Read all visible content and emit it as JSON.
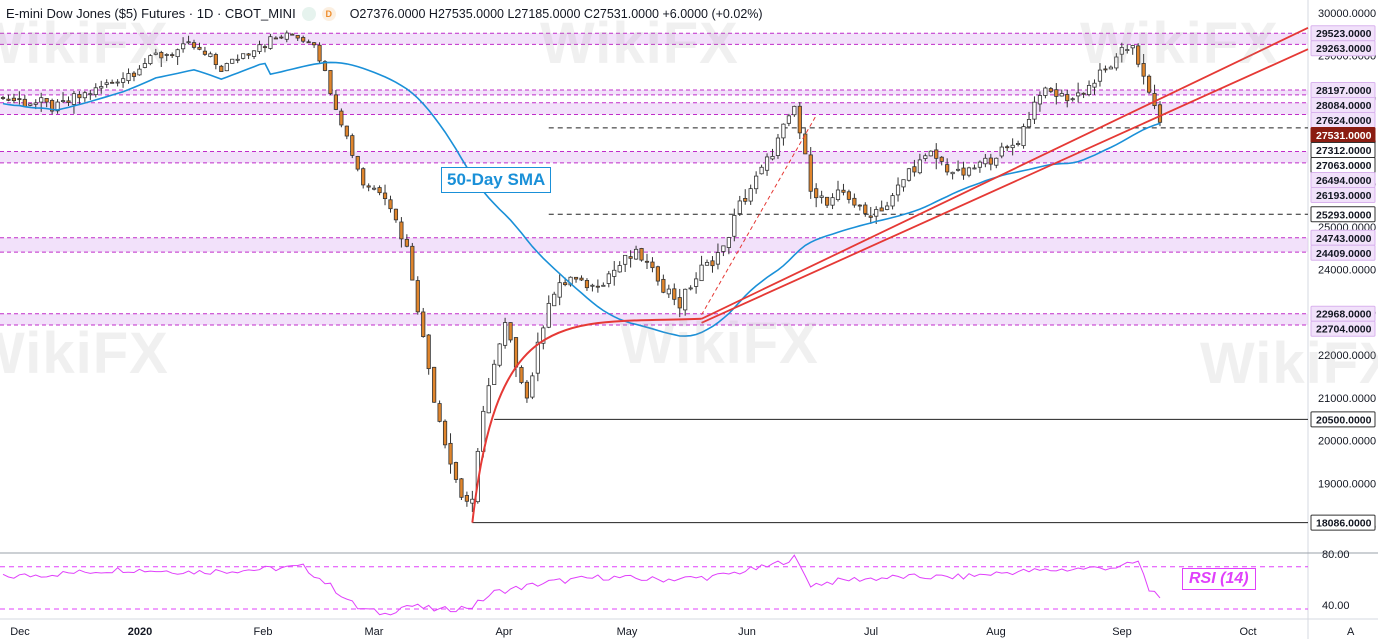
{
  "header": {
    "title": "E-mini Dow Jones ($5) Futures · 1D · CBOT_MINI",
    "dot1": "",
    "dot2": "D",
    "ohlc": "O27376.0000  H27535.0000  L27185.0000  C27531.0000  +6.0000 (+0.02%)"
  },
  "watermark": "WikiFX",
  "annotations": {
    "sma_label": "50-Day SMA",
    "rsi_label": "RSI (14)"
  },
  "colors": {
    "up": "#ffffff",
    "down": "#e0852c",
    "wick": "#333333",
    "sma": "#1a90d8",
    "trend": "#e53935",
    "zone": "#e7c9f5",
    "zone_line": "#c02cc9",
    "rsi": "#e040fb",
    "last_price_bg": "#8b1d12"
  },
  "chart_data": {
    "type": "candlestick",
    "title": "E-mini Dow Jones ($5) Futures · 1D · CBOT_MINI",
    "ylim": [
      17400,
      30300
    ],
    "y_ticks": [
      18000,
      19000,
      20000,
      21000,
      22000,
      23000,
      24000,
      25000,
      26000,
      27000,
      28000,
      29000,
      30000
    ],
    "x_labels": [
      "Dec",
      "2020",
      "Feb",
      "Mar",
      "Apr",
      "May",
      "Jun",
      "Jul",
      "Aug",
      "Sep",
      "Oct"
    ],
    "price_labels": [
      {
        "value": 29523,
        "style": "zone"
      },
      {
        "value": 29263,
        "style": "zone"
      },
      {
        "value": 28197,
        "style": "zone"
      },
      {
        "value": 28084,
        "style": "zone"
      },
      {
        "value": 27624,
        "style": "zone"
      },
      {
        "value": 27531,
        "style": "last"
      },
      {
        "value": 27312,
        "style": "plain"
      },
      {
        "value": 27063,
        "style": "plain"
      },
      {
        "value": 26494,
        "style": "zone"
      },
      {
        "value": 26193,
        "style": "zone"
      },
      {
        "value": 25293,
        "style": "plain"
      },
      {
        "value": 24743,
        "style": "zone"
      },
      {
        "value": 24409,
        "style": "zone"
      },
      {
        "value": 22968,
        "style": "zone"
      },
      {
        "value": 22704,
        "style": "zone"
      },
      {
        "value": 20500,
        "style": "plain"
      },
      {
        "value": 18086,
        "style": "plain"
      }
    ],
    "zones": [
      [
        29263,
        29523
      ],
      [
        28084,
        28197
      ],
      [
        27624,
        27900
      ],
      [
        26494,
        26760
      ],
      [
        24409,
        24743
      ],
      [
        22704,
        22968
      ]
    ],
    "horizontal_lines": [
      {
        "value": 20500,
        "style": "solid"
      },
      {
        "value": 18086,
        "style": "solid"
      },
      {
        "value": 27312,
        "style": "dashed"
      },
      {
        "value": 25293,
        "style": "dashed"
      }
    ],
    "close_waypoints": [
      [
        0,
        28000
      ],
      [
        10,
        27800
      ],
      [
        22,
        28500
      ],
      [
        28,
        29000
      ],
      [
        35,
        29200
      ],
      [
        40,
        28700
      ],
      [
        47,
        29300
      ],
      [
        53,
        29500
      ],
      [
        57,
        29300
      ],
      [
        60,
        28200
      ],
      [
        66,
        26000
      ],
      [
        70,
        25800
      ],
      [
        74,
        24500
      ],
      [
        79,
        21000
      ],
      [
        82,
        19500
      ],
      [
        84,
        18700
      ],
      [
        86,
        18500
      ],
      [
        88,
        20800
      ],
      [
        92,
        22700
      ],
      [
        96,
        21000
      ],
      [
        100,
        23300
      ],
      [
        104,
        23800
      ],
      [
        108,
        23600
      ],
      [
        112,
        24000
      ],
      [
        116,
        24400
      ],
      [
        120,
        23800
      ],
      [
        124,
        23200
      ],
      [
        128,
        24000
      ],
      [
        132,
        24500
      ],
      [
        135,
        25500
      ],
      [
        140,
        26500
      ],
      [
        145,
        27800
      ],
      [
        148,
        26000
      ],
      [
        151,
        25500
      ],
      [
        154,
        25800
      ],
      [
        158,
        25300
      ],
      [
        162,
        25500
      ],
      [
        166,
        26300
      ],
      [
        170,
        26700
      ],
      [
        175,
        26200
      ],
      [
        180,
        26500
      ],
      [
        186,
        27000
      ],
      [
        190,
        28200
      ],
      [
        196,
        28000
      ],
      [
        200,
        28400
      ],
      [
        204,
        28900
      ],
      [
        207,
        29300
      ],
      [
        209,
        28400
      ],
      [
        212,
        27500
      ]
    ],
    "rsi": {
      "ylim": [
        30,
        80
      ],
      "ticks": [
        40,
        80
      ],
      "levels": [
        70,
        37
      ],
      "waypoints": [
        [
          0,
          62
        ],
        [
          12,
          65
        ],
        [
          22,
          68
        ],
        [
          35,
          66
        ],
        [
          47,
          68
        ],
        [
          55,
          70
        ],
        [
          60,
          55
        ],
        [
          65,
          38
        ],
        [
          70,
          33
        ],
        [
          74,
          40
        ],
        [
          80,
          36
        ],
        [
          86,
          39
        ],
        [
          90,
          50
        ],
        [
          100,
          58
        ],
        [
          110,
          62
        ],
        [
          120,
          60
        ],
        [
          130,
          62
        ],
        [
          140,
          70
        ],
        [
          145,
          77
        ],
        [
          148,
          56
        ],
        [
          155,
          60
        ],
        [
          165,
          62
        ],
        [
          175,
          62
        ],
        [
          185,
          66
        ],
        [
          195,
          68
        ],
        [
          205,
          70
        ],
        [
          208,
          74
        ],
        [
          210,
          52
        ],
        [
          212,
          48
        ]
      ]
    }
  }
}
